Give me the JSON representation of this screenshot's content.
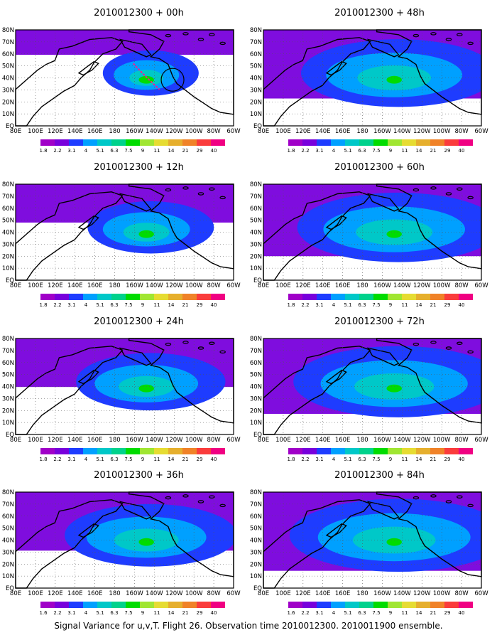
{
  "figure": {
    "caption": "Signal Variance for u,v,T. Flight 26. Observation time 2010012300. 2010011900 ensemble."
  },
  "panels": [
    {
      "title": "2010012300 + 00h",
      "spread": 0.2
    },
    {
      "title": "2010012300 + 12h",
      "spread": 0.4
    },
    {
      "title": "2010012300 + 24h",
      "spread": 0.55
    },
    {
      "title": "2010012300 + 36h",
      "spread": 0.7
    },
    {
      "title": "2010012300 + 48h",
      "spread": 0.85
    },
    {
      "title": "2010012300 + 60h",
      "spread": 0.9
    },
    {
      "title": "2010012300 + 72h",
      "spread": 0.95
    },
    {
      "title": "2010012300 + 84h",
      "spread": 1.0
    }
  ],
  "map": {
    "lon_labels": [
      "80E",
      "100E",
      "120E",
      "140E",
      "160E",
      "180",
      "160W",
      "140W",
      "120W",
      "100W",
      "80W",
      "60W"
    ],
    "lat_labels": [
      "80N",
      "70N",
      "60N",
      "50N",
      "40N",
      "30N",
      "20N",
      "10N",
      "EQ"
    ],
    "lat_labels_visible": [
      "30N",
      "70N",
      "60N",
      "50N",
      "40N",
      "30N",
      "20N",
      "10N",
      "EQ"
    ],
    "lat_labels_visible_48h": [
      "30N",
      "70N",
      "60N",
      "50N",
      "40N",
      "30N",
      "20N",
      "10N",
      "EQ"
    ]
  },
  "legend": {
    "labels": [
      "1.8",
      "2.2",
      "3.1",
      "4",
      "5.1",
      "6.3",
      "7.5",
      "9",
      "11",
      "14",
      "21",
      "29",
      "40"
    ],
    "labels_alt": [
      "1.6",
      "2.2",
      "3.1",
      "4",
      "5.1",
      "6.3",
      "7.5",
      "9",
      "11",
      "14",
      "21",
      "29",
      "40"
    ],
    "colors": [
      "#a000c8",
      "#7800dc",
      "#1e3cff",
      "#00a0ff",
      "#00c8c8",
      "#00d28c",
      "#00dc00",
      "#a0e632",
      "#e6dc32",
      "#e6af2d",
      "#f08228",
      "#fa3c3c",
      "#f00082"
    ]
  },
  "colors": {
    "track": "#ff1493",
    "coast": "#000000",
    "grid": "#555555"
  }
}
